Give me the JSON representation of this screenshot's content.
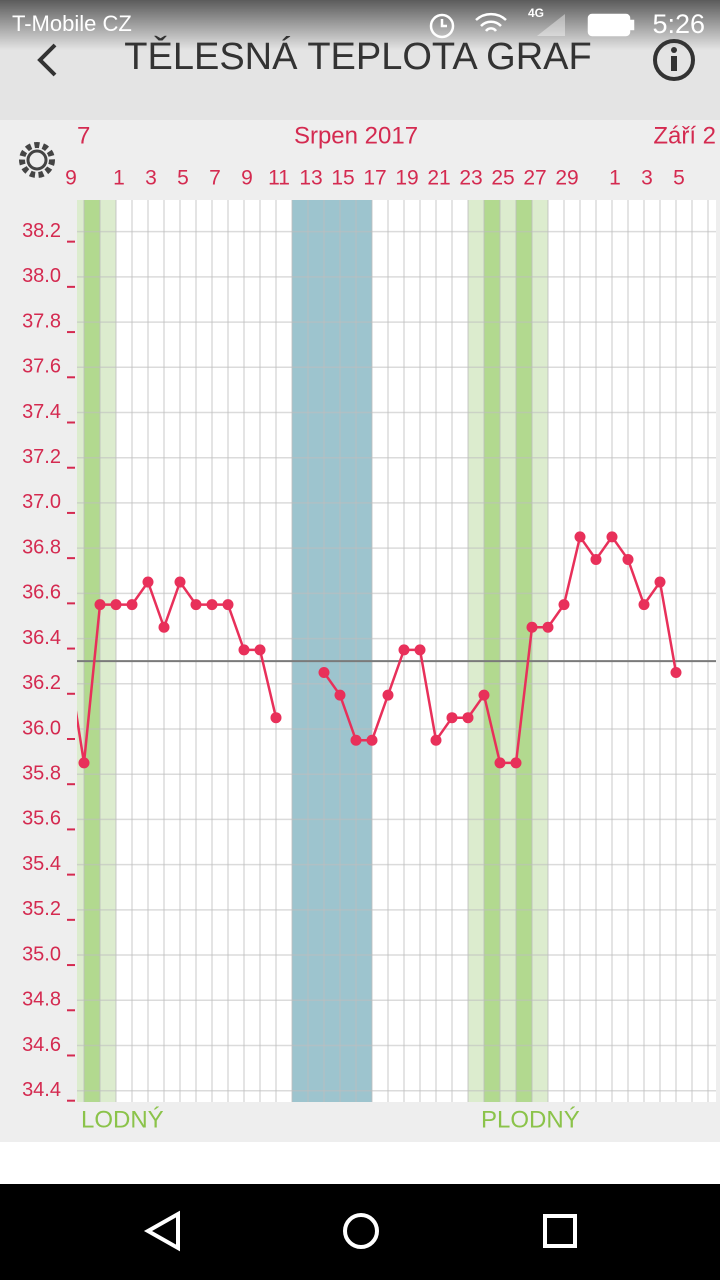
{
  "status_bar": {
    "carrier": "T-Mobile CZ",
    "network": "4G",
    "time": "5:26"
  },
  "header": {
    "title": "TĚLESNÁ TEPLOTA GRAF"
  },
  "chart_data": {
    "type": "line",
    "months": [
      "7",
      "Srpen 2017",
      "Září 2"
    ],
    "categories": [
      "9",
      null,
      null,
      "1",
      null,
      "3",
      null,
      "5",
      null,
      "7",
      null,
      "9",
      null,
      "11",
      null,
      "13",
      null,
      "15",
      null,
      "17",
      null,
      "19",
      null,
      "21",
      null,
      "23",
      null,
      "25",
      null,
      "27",
      null,
      "29",
      null,
      null,
      "1",
      null,
      "3",
      null,
      "5",
      null,
      null
    ],
    "series": [
      {
        "color": "#e8305a",
        "values": [
          36.3,
          35.85,
          36.55,
          36.55,
          36.55,
          36.65,
          36.45,
          36.65,
          36.55,
          36.55,
          36.55,
          36.35,
          36.35,
          36.05,
          null,
          null,
          36.25,
          36.15,
          35.95,
          35.95,
          36.15,
          36.35,
          36.35,
          35.95,
          36.05,
          36.05,
          36.15,
          35.85,
          35.85,
          36.45,
          36.45,
          36.55,
          36.85,
          36.75,
          36.85,
          36.75,
          36.55,
          36.65,
          36.25,
          null,
          null
        ]
      }
    ],
    "coverline": 36.3,
    "coverline_color": "#7a7a7a",
    "ylim": [
      34.35,
      38.34
    ],
    "yticks": [
      34.4,
      34.6,
      34.8,
      {
        "value": 35,
        "label": "35.0"
      },
      35.2,
      35.4,
      35.6,
      35.8,
      {
        "value": 36,
        "label": "36.0"
      },
      36.2,
      36.4,
      36.6,
      36.8,
      {
        "value": 37,
        "label": "37.0"
      },
      37.2,
      37.4,
      37.6,
      37.8,
      {
        "value": 38,
        "label": "38.0"
      },
      38.2
    ],
    "grid": true,
    "bands": [
      {
        "from": 0,
        "to": 3,
        "color": "#dcecce",
        "label": "LODNÝ"
      },
      {
        "from": 1,
        "to": 2,
        "color": "#b2d98f"
      },
      {
        "from": 14,
        "to": 19,
        "color": "#9dc4ce"
      },
      {
        "from": 25,
        "to": 30,
        "color": "#dcecce",
        "label": "PLODNÝ"
      },
      {
        "from": 26,
        "to": 27,
        "color": "#b2d98f"
      },
      {
        "from": 28,
        "to": 29,
        "color": "#b2d98f"
      }
    ]
  }
}
